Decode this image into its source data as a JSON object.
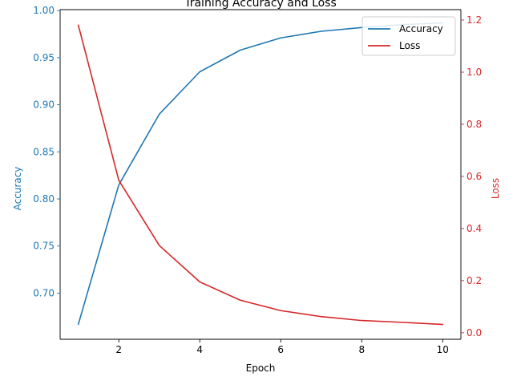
{
  "chart_data": {
    "type": "line",
    "title": "Training Accuracy and Loss",
    "xlabel": "Epoch",
    "ylabel_left": "Accuracy",
    "ylabel_right": "Loss",
    "x": [
      1,
      2,
      3,
      4,
      5,
      6,
      7,
      8,
      9,
      10
    ],
    "xlim": [
      0.55,
      10.45
    ],
    "x_ticks": [
      2,
      4,
      6,
      8,
      10
    ],
    "ylim_left": [
      0.651,
      1.001
    ],
    "y_ticks_left": [
      0.7,
      0.75,
      0.8,
      0.85,
      0.9,
      0.95,
      1.0
    ],
    "ylim_right": [
      -0.025,
      1.24
    ],
    "y_ticks_right": [
      0.0,
      0.2,
      0.4,
      0.6,
      0.8,
      1.0,
      1.2
    ],
    "series": [
      {
        "name": "Accuracy",
        "axis": "left",
        "color": "#1f77b4",
        "values": [
          0.667,
          0.815,
          0.89,
          0.935,
          0.958,
          0.971,
          0.978,
          0.982,
          0.985,
          0.987
        ]
      },
      {
        "name": "Loss",
        "axis": "right",
        "color": "#d62728",
        "values": [
          1.18,
          0.585,
          0.335,
          0.195,
          0.125,
          0.085,
          0.062,
          0.047,
          0.04,
          0.032
        ]
      }
    ],
    "legend": "top-right",
    "grid": false
  }
}
